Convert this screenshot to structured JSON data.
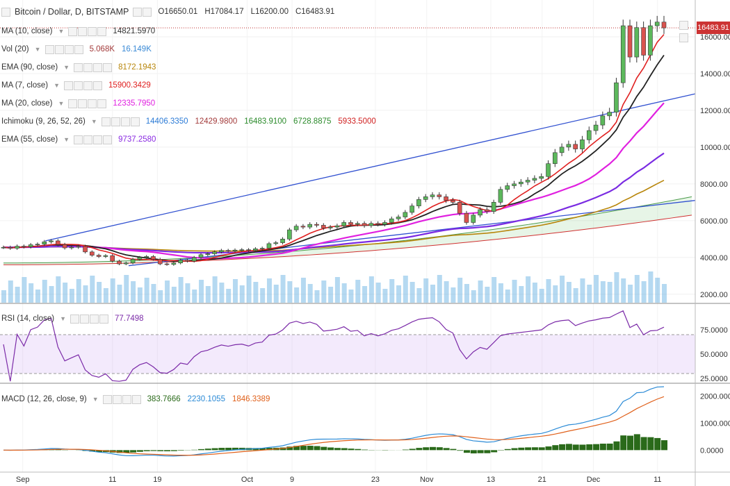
{
  "header": {
    "symbol": "Bitcoin / Dollar, D, BITSTAMP",
    "open": "O16650.01",
    "high": "H17084.17",
    "low": "L16200.00",
    "close": "C16483.91",
    "last_price_tag": "16483.91"
  },
  "indicators": [
    {
      "name": "MA (10, close)",
      "values": [
        "14821.5970"
      ],
      "colors": [
        "#333333"
      ]
    },
    {
      "name": "Vol (20)",
      "values": [
        "5.068K",
        "16.149K"
      ],
      "colors": [
        "#a33b3b",
        "#3a8ad6"
      ]
    },
    {
      "name": "EMA (90, close)",
      "values": [
        "8172.1943"
      ],
      "colors": [
        "#b8860b"
      ]
    },
    {
      "name": "MA (7, close)",
      "values": [
        "15900.3429"
      ],
      "colors": [
        "#e02020"
      ]
    },
    {
      "name": "MA (20, close)",
      "values": [
        "12335.7950"
      ],
      "colors": [
        "#e020e0"
      ]
    },
    {
      "name": "Ichimoku (9, 26, 52, 26)",
      "values": [
        "14406.3350",
        "12429.9800",
        "16483.9100",
        "6728.8875",
        "5933.5000"
      ],
      "colors": [
        "#2a7ad6",
        "#a33b3b",
        "#2a8a2a",
        "#2a8a2a",
        "#d02020"
      ]
    },
    {
      "name": "EMA (55, close)",
      "values": [
        "9737.2580"
      ],
      "colors": [
        "#8a2be2"
      ]
    }
  ],
  "rsi": {
    "name": "RSI (14, close)",
    "value": "77.7498",
    "color": "#7b2aa8"
  },
  "macd": {
    "name": "MACD (12, 26, close, 9)",
    "values": [
      "383.7666",
      "2230.1055",
      "1846.3389"
    ],
    "colors": [
      "#2a6a1a",
      "#2a8ad6",
      "#e0601a"
    ]
  },
  "chart_data": {
    "type": "line",
    "price_axis_ticks": [
      "16000.00",
      "14000.00",
      "12000.00",
      "10000.00",
      "8000.00",
      "6000.00",
      "4000.00",
      "2000.00"
    ],
    "rsi_axis_ticks": [
      "75.0000",
      "50.0000",
      "25.0000"
    ],
    "macd_axis_ticks": [
      "2000.0000",
      "1000.0000",
      "0.0000"
    ],
    "x_ticks": [
      "Sep",
      "11",
      "19",
      "Oct",
      "9",
      "23",
      "Nov",
      "13",
      "21",
      "Dec",
      "11"
    ],
    "ylim_price": [
      1500,
      18000
    ],
    "close_series": [
      4550,
      4500,
      4610,
      4580,
      4690,
      4720,
      4850,
      4900,
      4700,
      4520,
      4560,
      4600,
      4300,
      4120,
      4050,
      4100,
      3800,
      3650,
      3700,
      3900,
      4000,
      4050,
      3900,
      3650,
      3620,
      3700,
      3850,
      3800,
      4000,
      4150,
      4200,
      4300,
      4380,
      4350,
      4400,
      4420,
      4380,
      4470,
      4500,
      4750,
      4800,
      5000,
      5500,
      5700,
      5650,
      5800,
      5750,
      5600,
      5650,
      5720,
      5900,
      5800,
      5850,
      5730,
      5850,
      5800,
      5900,
      6100,
      6200,
      6450,
      6800,
      7150,
      7300,
      7400,
      7300,
      7100,
      7000,
      6400,
      5900,
      6300,
      6600,
      6500,
      7000,
      7700,
      7900,
      8000,
      8100,
      8200,
      8300,
      8400,
      9100,
      9700,
      10000,
      10150,
      9900,
      10400,
      10900,
      11200,
      11700,
      11900,
      13500,
      16600,
      14900,
      16500,
      15000,
      16600,
      16800,
      16483.91
    ],
    "ma7_last": 15900.3429,
    "ma10_last": 14821.597,
    "ma20_last": 12335.795,
    "ema55_last": 9737.258,
    "ema90_last": 8172.1943,
    "rsi_last": 77.7498,
    "macd_last": {
      "histogram": 383.7666,
      "macd": 2230.1055,
      "signal": 1846.3389
    }
  }
}
